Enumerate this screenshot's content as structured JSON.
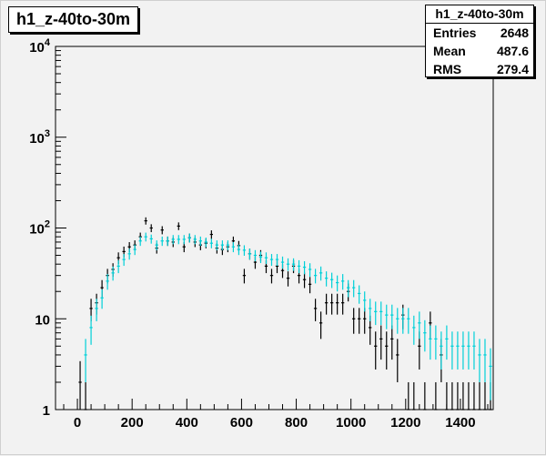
{
  "stats": {
    "title": "h1_z-40to-30m",
    "rows": [
      {
        "label": "Entries",
        "value": "2648"
      },
      {
        "label": "Mean",
        "value": "487.6"
      },
      {
        "label": "RMS",
        "value": "279.4"
      }
    ]
  },
  "chart_data": {
    "type": "scatter",
    "title": "h1_z-40to-30m",
    "xlabel": "",
    "ylabel": "",
    "xlim": [
      -80,
      1520
    ],
    "ylim": [
      1,
      10000
    ],
    "y_scale": "log",
    "grid": false,
    "x_ticks": [
      0,
      200,
      400,
      600,
      800,
      1000,
      1200,
      1400
    ],
    "x_tick_labels": [
      "0",
      "200",
      "400",
      "600",
      "800",
      "1000",
      "1200",
      "1400"
    ],
    "y_ticks": [
      1,
      10,
      100,
      1000,
      10000
    ],
    "y_tick_labels": [
      "1",
      "10",
      "10^2",
      "10^3",
      "10^4"
    ],
    "bin_width": 20,
    "series": [
      {
        "color": "#000000",
        "points": [
          [
            10,
            2
          ],
          [
            30,
            1
          ],
          [
            50,
            13
          ],
          [
            70,
            15
          ],
          [
            90,
            22
          ],
          [
            110,
            30
          ],
          [
            130,
            35
          ],
          [
            150,
            47
          ],
          [
            170,
            55
          ],
          [
            190,
            62
          ],
          [
            210,
            65
          ],
          [
            230,
            80
          ],
          [
            250,
            120
          ],
          [
            270,
            100
          ],
          [
            290,
            60
          ],
          [
            310,
            95
          ],
          [
            330,
            72
          ],
          [
            350,
            70
          ],
          [
            370,
            105
          ],
          [
            390,
            62
          ],
          [
            410,
            78
          ],
          [
            430,
            70
          ],
          [
            450,
            65
          ],
          [
            470,
            68
          ],
          [
            490,
            85
          ],
          [
            510,
            60
          ],
          [
            530,
            58
          ],
          [
            550,
            62
          ],
          [
            570,
            72
          ],
          [
            590,
            64
          ],
          [
            610,
            30
          ],
          [
            630,
            52
          ],
          [
            650,
            42
          ],
          [
            670,
            50
          ],
          [
            690,
            38
          ],
          [
            710,
            30
          ],
          [
            730,
            38
          ],
          [
            750,
            34
          ],
          [
            770,
            28
          ],
          [
            790,
            38
          ],
          [
            810,
            30
          ],
          [
            830,
            27
          ],
          [
            850,
            24
          ],
          [
            870,
            13
          ],
          [
            890,
            9
          ],
          [
            910,
            15
          ],
          [
            930,
            15
          ],
          [
            950,
            15
          ],
          [
            970,
            15
          ],
          [
            990,
            20
          ],
          [
            1010,
            10
          ],
          [
            1030,
            10
          ],
          [
            1050,
            10
          ],
          [
            1070,
            8
          ],
          [
            1090,
            5
          ],
          [
            1110,
            6
          ],
          [
            1130,
            5
          ],
          [
            1150,
            6
          ],
          [
            1170,
            4
          ],
          [
            1190,
            11
          ],
          [
            1210,
            1
          ],
          [
            1230,
            1
          ],
          [
            1250,
            5
          ],
          [
            1270,
            1
          ],
          [
            1290,
            9
          ],
          [
            1310,
            1
          ],
          [
            1330,
            4
          ],
          [
            1350,
            1
          ],
          [
            1370,
            1
          ],
          [
            1390,
            1
          ],
          [
            1410,
            1
          ],
          [
            1430,
            1
          ],
          [
            1450,
            1
          ],
          [
            1470,
            1
          ],
          [
            1490,
            1
          ],
          [
            1510,
            1
          ]
        ]
      },
      {
        "color": "#00d0d8",
        "points": [
          [
            30,
            4
          ],
          [
            50,
            8
          ],
          [
            70,
            13
          ],
          [
            90,
            17
          ],
          [
            110,
            26
          ],
          [
            130,
            32
          ],
          [
            150,
            38
          ],
          [
            170,
            45
          ],
          [
            190,
            52
          ],
          [
            210,
            58
          ],
          [
            230,
            72
          ],
          [
            250,
            80
          ],
          [
            270,
            76
          ],
          [
            290,
            65
          ],
          [
            310,
            72
          ],
          [
            330,
            72
          ],
          [
            350,
            75
          ],
          [
            370,
            75
          ],
          [
            390,
            75
          ],
          [
            410,
            78
          ],
          [
            430,
            75
          ],
          [
            450,
            72
          ],
          [
            470,
            70
          ],
          [
            490,
            68
          ],
          [
            510,
            65
          ],
          [
            530,
            65
          ],
          [
            550,
            65
          ],
          [
            570,
            62
          ],
          [
            590,
            58
          ],
          [
            610,
            57
          ],
          [
            630,
            52
          ],
          [
            650,
            50
          ],
          [
            670,
            48
          ],
          [
            690,
            47
          ],
          [
            710,
            45
          ],
          [
            730,
            45
          ],
          [
            750,
            42
          ],
          [
            770,
            40
          ],
          [
            790,
            40
          ],
          [
            810,
            38
          ],
          [
            830,
            37
          ],
          [
            850,
            35
          ],
          [
            870,
            30
          ],
          [
            890,
            32
          ],
          [
            910,
            28
          ],
          [
            930,
            27
          ],
          [
            950,
            25
          ],
          [
            970,
            26
          ],
          [
            990,
            22
          ],
          [
            1010,
            22
          ],
          [
            1030,
            19
          ],
          [
            1050,
            16
          ],
          [
            1070,
            13
          ],
          [
            1090,
            12
          ],
          [
            1110,
            12
          ],
          [
            1130,
            11
          ],
          [
            1150,
            11
          ],
          [
            1170,
            10
          ],
          [
            1190,
            10
          ],
          [
            1210,
            10
          ],
          [
            1230,
            8
          ],
          [
            1250,
            9
          ],
          [
            1270,
            7
          ],
          [
            1290,
            6
          ],
          [
            1310,
            6
          ],
          [
            1330,
            5
          ],
          [
            1350,
            6
          ],
          [
            1370,
            5
          ],
          [
            1390,
            5
          ],
          [
            1410,
            5
          ],
          [
            1430,
            5
          ],
          [
            1450,
            5
          ],
          [
            1470,
            4
          ],
          [
            1490,
            4
          ],
          [
            1510,
            3
          ]
        ]
      }
    ]
  }
}
